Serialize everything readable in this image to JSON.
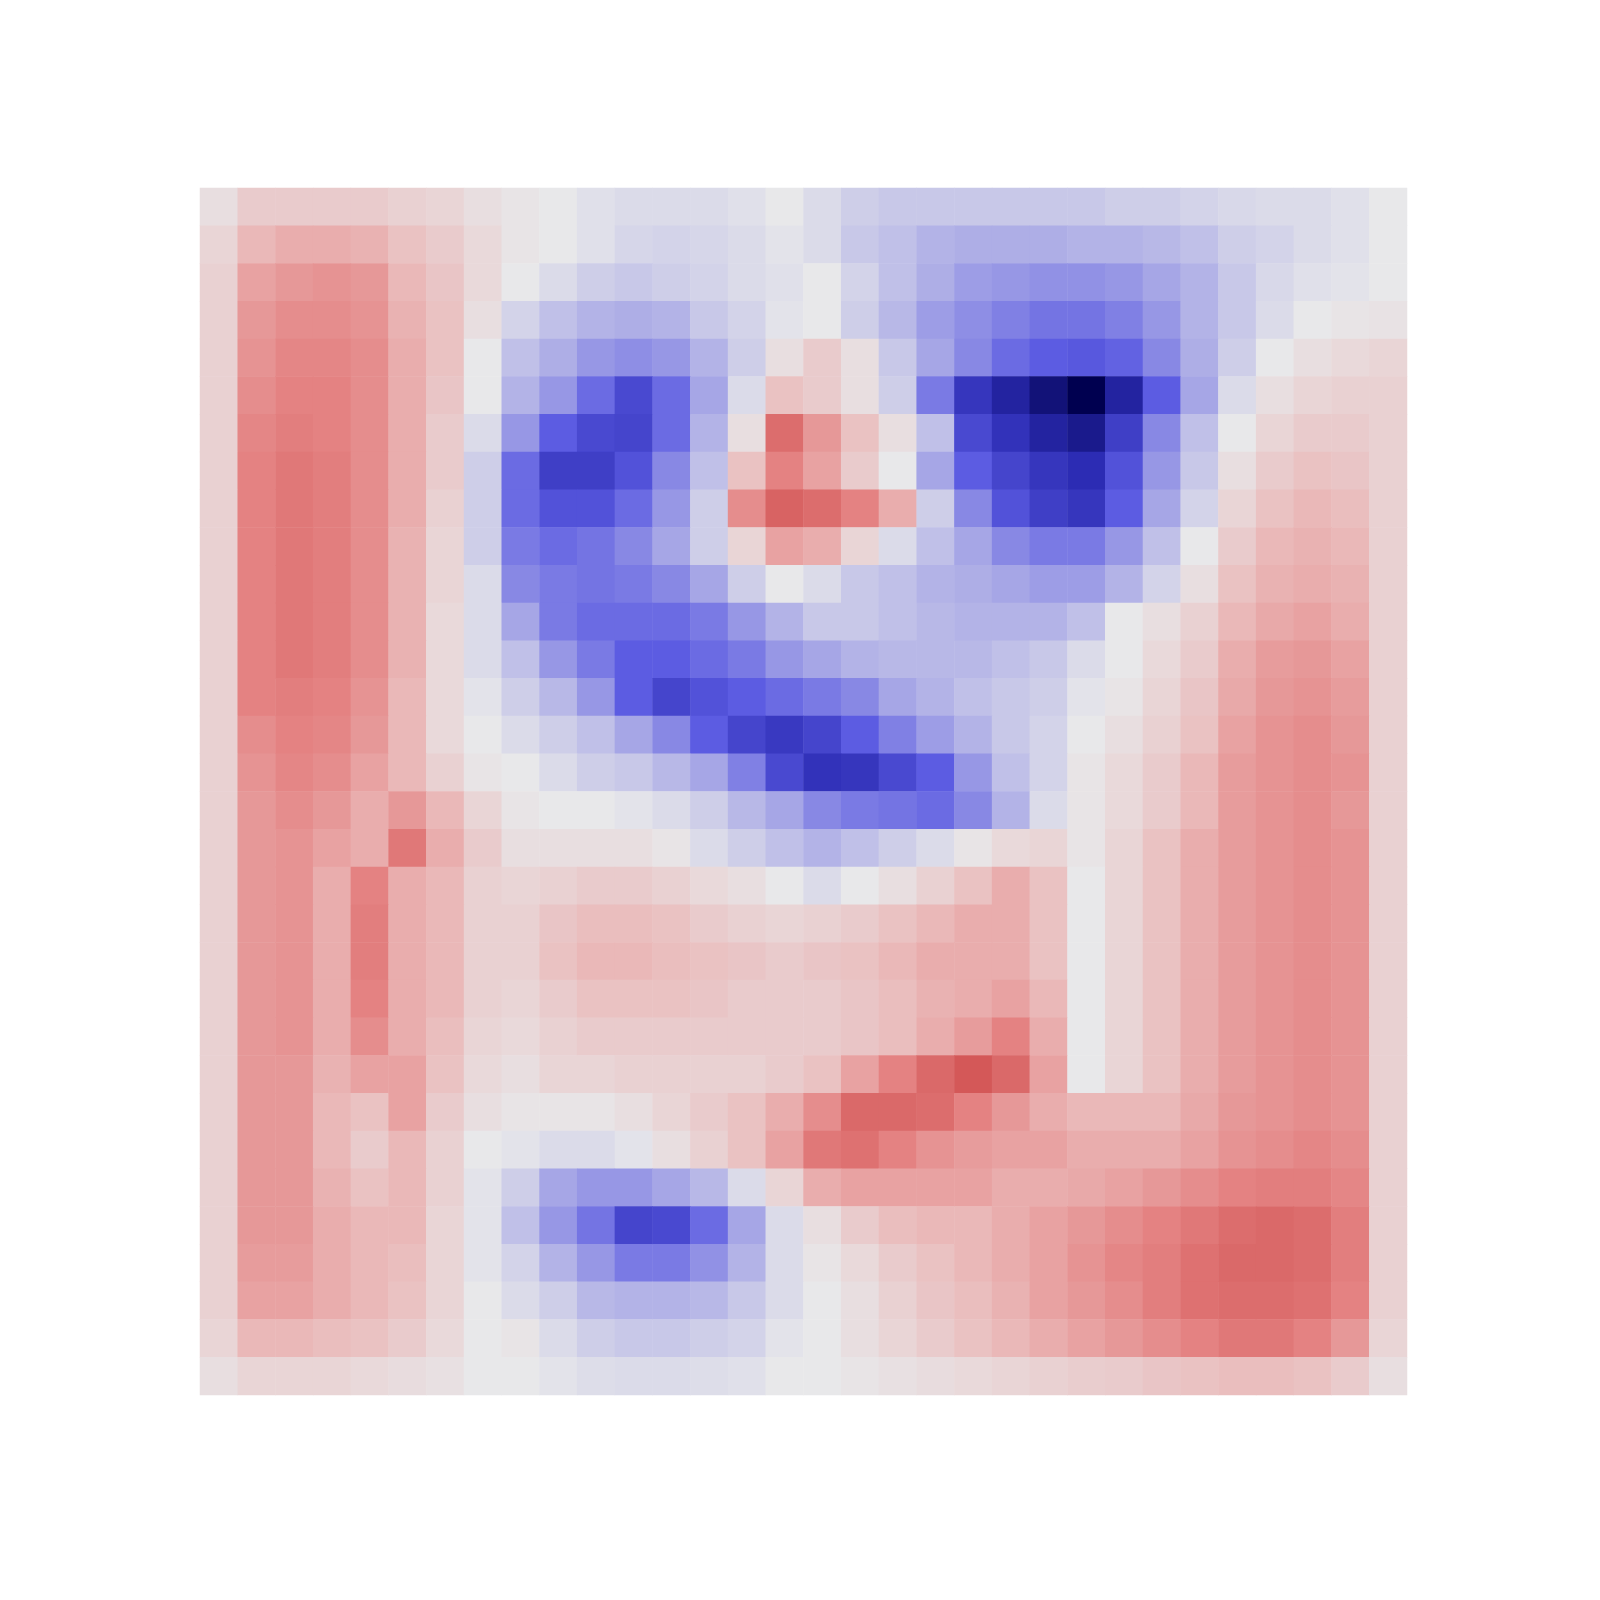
{
  "chart_data": {
    "type": "heatmap",
    "zlim": [
      -1,
      1
    ],
    "tick_labels": false,
    "cells": [
      [
        0.05,
        0.15,
        0.15,
        0.15,
        0.15,
        0.12,
        0.1,
        0.05,
        0.02,
        0,
        -0.03,
        -0.05,
        -0.05,
        -0.05,
        -0.03,
        0,
        -0.05,
        -0.1,
        -0.12,
        -0.12,
        -0.12,
        -0.12,
        -0.12,
        -0.12,
        -0.1,
        -0.1,
        -0.08,
        -0.06,
        -0.05,
        -0.05,
        -0.03,
        0
      ],
      [
        0.1,
        0.25,
        0.3,
        0.3,
        0.28,
        0.2,
        0.15,
        0.08,
        0.02,
        0,
        -0.03,
        -0.07,
        -0.08,
        -0.07,
        -0.05,
        -0.02,
        -0.05,
        -0.12,
        -0.15,
        -0.2,
        -0.22,
        -0.22,
        -0.22,
        -0.2,
        -0.2,
        -0.18,
        -0.15,
        -0.1,
        -0.08,
        -0.05,
        -0.03,
        0
      ],
      [
        0.12,
        0.35,
        0.4,
        0.42,
        0.4,
        0.25,
        0.18,
        0.08,
        0,
        -0.05,
        -0.1,
        -0.12,
        -0.1,
        -0.08,
        -0.05,
        -0.03,
        0,
        -0.08,
        -0.15,
        -0.22,
        -0.28,
        -0.3,
        -0.32,
        -0.32,
        -0.3,
        -0.25,
        -0.2,
        -0.12,
        -0.06,
        -0.03,
        -0.02,
        0
      ],
      [
        0.12,
        0.4,
        0.45,
        0.45,
        0.42,
        0.28,
        0.2,
        0.05,
        -0.08,
        -0.15,
        -0.2,
        -0.22,
        -0.2,
        -0.12,
        -0.08,
        -0.02,
        0,
        -0.1,
        -0.18,
        -0.28,
        -0.33,
        -0.38,
        -0.42,
        -0.42,
        -0.38,
        -0.3,
        -0.2,
        -0.12,
        -0.05,
        0,
        0.02,
        0.03
      ],
      [
        0.12,
        0.42,
        0.48,
        0.48,
        0.45,
        0.3,
        0.2,
        0,
        -0.15,
        -0.22,
        -0.3,
        -0.33,
        -0.3,
        -0.2,
        -0.1,
        0.05,
        0.15,
        0.05,
        -0.12,
        -0.25,
        -0.35,
        -0.45,
        -0.5,
        -0.52,
        -0.48,
        -0.35,
        -0.22,
        -0.1,
        0,
        0.05,
        0.08,
        0.1
      ],
      [
        0.12,
        0.45,
        0.5,
        0.5,
        0.45,
        0.3,
        0.18,
        0,
        -0.2,
        -0.3,
        -0.45,
        -0.6,
        -0.45,
        -0.25,
        -0.05,
        0.2,
        0.15,
        0.05,
        -0.1,
        -0.4,
        -0.7,
        -0.8,
        -0.9,
        -1.0,
        -0.8,
        -0.5,
        -0.25,
        -0.05,
        0.05,
        0.1,
        0.12,
        0.12
      ],
      [
        0.12,
        0.48,
        0.52,
        0.5,
        0.45,
        0.3,
        0.15,
        -0.05,
        -0.3,
        -0.5,
        -0.6,
        -0.62,
        -0.45,
        -0.2,
        0.05,
        0.6,
        0.4,
        0.2,
        0.05,
        -0.15,
        -0.6,
        -0.72,
        -0.8,
        -0.85,
        -0.65,
        -0.35,
        -0.15,
        0,
        0.1,
        0.15,
        0.15,
        0.12
      ],
      [
        0.12,
        0.5,
        0.55,
        0.52,
        0.45,
        0.3,
        0.15,
        -0.1,
        -0.45,
        -0.65,
        -0.65,
        -0.55,
        -0.35,
        -0.15,
        0.2,
        0.5,
        0.35,
        0.15,
        0,
        -0.25,
        -0.5,
        -0.62,
        -0.7,
        -0.75,
        -0.55,
        -0.3,
        -0.12,
        0.05,
        0.15,
        0.2,
        0.18,
        0.12
      ],
      [
        0.12,
        0.5,
        0.55,
        0.52,
        0.45,
        0.3,
        0.12,
        -0.1,
        -0.45,
        -0.55,
        -0.55,
        -0.45,
        -0.3,
        -0.1,
        0.45,
        0.65,
        0.6,
        0.5,
        0.3,
        -0.1,
        -0.35,
        -0.55,
        -0.65,
        -0.7,
        -0.5,
        -0.25,
        -0.08,
        0.1,
        0.2,
        0.25,
        0.22,
        0.12
      ],
      [
        0.12,
        0.5,
        0.55,
        0.52,
        0.45,
        0.28,
        0.1,
        -0.1,
        -0.4,
        -0.45,
        -0.42,
        -0.35,
        -0.25,
        -0.1,
        0.1,
        0.35,
        0.3,
        0.1,
        -0.05,
        -0.15,
        -0.25,
        -0.35,
        -0.4,
        -0.4,
        -0.3,
        -0.15,
        0,
        0.15,
        0.25,
        0.28,
        0.25,
        0.12
      ],
      [
        0.12,
        0.5,
        0.55,
        0.52,
        0.45,
        0.28,
        0.1,
        -0.05,
        -0.35,
        -0.4,
        -0.42,
        -0.4,
        -0.35,
        -0.25,
        -0.1,
        0,
        -0.05,
        -0.12,
        -0.15,
        -0.2,
        -0.22,
        -0.25,
        -0.28,
        -0.28,
        -0.2,
        -0.08,
        0.05,
        0.2,
        0.28,
        0.3,
        0.28,
        0.12
      ],
      [
        0.12,
        0.5,
        0.55,
        0.52,
        0.45,
        0.28,
        0.08,
        -0.05,
        -0.25,
        -0.4,
        -0.45,
        -0.45,
        -0.45,
        -0.4,
        -0.3,
        -0.2,
        -0.12,
        -0.12,
        -0.15,
        -0.18,
        -0.2,
        -0.2,
        -0.2,
        -0.15,
        0,
        0.05,
        0.12,
        0.25,
        0.32,
        0.35,
        0.3,
        0.12
      ],
      [
        0.12,
        0.5,
        0.55,
        0.52,
        0.45,
        0.28,
        0.08,
        -0.05,
        -0.15,
        -0.3,
        -0.4,
        -0.5,
        -0.5,
        -0.45,
        -0.4,
        -0.3,
        -0.25,
        -0.2,
        -0.18,
        -0.18,
        -0.18,
        -0.15,
        -0.12,
        -0.05,
        0,
        0.08,
        0.15,
        0.3,
        0.38,
        0.4,
        0.35,
        0.12
      ],
      [
        0.12,
        0.5,
        0.52,
        0.5,
        0.42,
        0.25,
        0.08,
        -0.02,
        -0.1,
        -0.18,
        -0.3,
        -0.5,
        -0.62,
        -0.55,
        -0.5,
        -0.45,
        -0.4,
        -0.35,
        -0.25,
        -0.2,
        -0.15,
        -0.12,
        -0.1,
        -0.02,
        0.02,
        0.1,
        0.18,
        0.32,
        0.4,
        0.42,
        0.38,
        0.12
      ],
      [
        0.12,
        0.45,
        0.5,
        0.48,
        0.4,
        0.25,
        0.08,
        0,
        -0.05,
        -0.1,
        -0.15,
        -0.25,
        -0.35,
        -0.5,
        -0.62,
        -0.68,
        -0.62,
        -0.5,
        -0.38,
        -0.28,
        -0.2,
        -0.12,
        -0.08,
        0,
        0.05,
        0.12,
        0.2,
        0.35,
        0.42,
        0.45,
        0.4,
        0.12
      ],
      [
        0.12,
        0.42,
        0.48,
        0.45,
        0.35,
        0.25,
        0.12,
        0.02,
        0,
        -0.05,
        -0.1,
        -0.12,
        -0.18,
        -0.25,
        -0.38,
        -0.6,
        -0.72,
        -0.7,
        -0.6,
        -0.5,
        -0.3,
        -0.15,
        -0.08,
        0.02,
        0.08,
        0.15,
        0.25,
        0.38,
        0.42,
        0.45,
        0.42,
        0.12
      ],
      [
        0.12,
        0.4,
        0.45,
        0.4,
        0.3,
        0.4,
        0.25,
        0.1,
        0.02,
        0,
        0,
        -0.02,
        -0.05,
        -0.1,
        -0.18,
        -0.25,
        -0.35,
        -0.4,
        -0.42,
        -0.45,
        -0.35,
        -0.2,
        -0.05,
        0.02,
        0.08,
        0.15,
        0.25,
        0.38,
        0.42,
        0.45,
        0.4,
        0.12
      ],
      [
        0.12,
        0.4,
        0.42,
        0.35,
        0.3,
        0.55,
        0.3,
        0.15,
        0.05,
        0.05,
        0.05,
        0.05,
        0.02,
        -0.05,
        -0.1,
        -0.15,
        -0.2,
        -0.15,
        -0.1,
        -0.05,
        0.02,
        0.08,
        0.1,
        0.02,
        0.1,
        0.2,
        0.3,
        0.38,
        0.42,
        0.45,
        0.42,
        0.12
      ],
      [
        0.12,
        0.4,
        0.42,
        0.3,
        0.5,
        0.3,
        0.25,
        0.12,
        0.1,
        0.12,
        0.15,
        0.15,
        0.12,
        0.08,
        0.05,
        0,
        -0.05,
        0,
        0.05,
        0.12,
        0.2,
        0.3,
        0.2,
        0,
        0.1,
        0.2,
        0.3,
        0.38,
        0.42,
        0.45,
        0.42,
        0.12
      ],
      [
        0.12,
        0.4,
        0.42,
        0.3,
        0.52,
        0.3,
        0.25,
        0.12,
        0.12,
        0.18,
        0.22,
        0.22,
        0.2,
        0.15,
        0.12,
        0.1,
        0.12,
        0.15,
        0.2,
        0.25,
        0.3,
        0.3,
        0.2,
        0,
        0.1,
        0.2,
        0.3,
        0.38,
        0.42,
        0.45,
        0.42,
        0.12
      ],
      [
        0.12,
        0.4,
        0.42,
        0.3,
        0.52,
        0.3,
        0.25,
        0.12,
        0.12,
        0.2,
        0.25,
        0.25,
        0.22,
        0.2,
        0.18,
        0.15,
        0.18,
        0.2,
        0.25,
        0.3,
        0.3,
        0.3,
        0.2,
        0,
        0.1,
        0.2,
        0.3,
        0.38,
        0.42,
        0.45,
        0.42,
        0.12
      ],
      [
        0.12,
        0.4,
        0.42,
        0.3,
        0.5,
        0.3,
        0.25,
        0.12,
        0.1,
        0.15,
        0.2,
        0.2,
        0.2,
        0.18,
        0.15,
        0.15,
        0.15,
        0.18,
        0.22,
        0.28,
        0.3,
        0.35,
        0.25,
        0,
        0.1,
        0.2,
        0.3,
        0.38,
        0.42,
        0.45,
        0.42,
        0.12
      ],
      [
        0.12,
        0.4,
        0.42,
        0.3,
        0.45,
        0.3,
        0.22,
        0.1,
        0.08,
        0.12,
        0.15,
        0.15,
        0.15,
        0.15,
        0.15,
        0.15,
        0.15,
        0.18,
        0.22,
        0.3,
        0.38,
        0.5,
        0.3,
        0,
        0.1,
        0.2,
        0.3,
        0.38,
        0.42,
        0.45,
        0.42,
        0.12
      ],
      [
        0.12,
        0.4,
        0.4,
        0.28,
        0.35,
        0.35,
        0.2,
        0.08,
        0.05,
        0.1,
        0.1,
        0.12,
        0.12,
        0.12,
        0.12,
        0.15,
        0.2,
        0.35,
        0.5,
        0.62,
        0.7,
        0.62,
        0.35,
        0,
        0.1,
        0.2,
        0.3,
        0.38,
        0.42,
        0.45,
        0.42,
        0.12
      ],
      [
        0.12,
        0.4,
        0.4,
        0.25,
        0.2,
        0.35,
        0.15,
        0.05,
        0.02,
        0.02,
        0.02,
        0.05,
        0.1,
        0.15,
        0.2,
        0.3,
        0.45,
        0.62,
        0.62,
        0.6,
        0.5,
        0.4,
        0.3,
        0.25,
        0.25,
        0.25,
        0.32,
        0.4,
        0.42,
        0.45,
        0.42,
        0.12
      ],
      [
        0.12,
        0.4,
        0.4,
        0.25,
        0.15,
        0.25,
        0.12,
        0,
        -0.02,
        -0.05,
        -0.05,
        -0.02,
        0.05,
        0.12,
        0.2,
        0.35,
        0.55,
        0.58,
        0.5,
        0.42,
        0.38,
        0.35,
        0.35,
        0.3,
        0.3,
        0.3,
        0.35,
        0.42,
        0.45,
        0.48,
        0.45,
        0.12
      ],
      [
        0.12,
        0.4,
        0.4,
        0.28,
        0.2,
        0.25,
        0.12,
        -0.02,
        -0.1,
        -0.25,
        -0.3,
        -0.3,
        -0.25,
        -0.18,
        -0.05,
        0.1,
        0.3,
        0.35,
        0.35,
        0.35,
        0.35,
        0.3,
        0.3,
        0.32,
        0.35,
        0.4,
        0.45,
        0.5,
        0.52,
        0.52,
        0.48,
        0.12
      ],
      [
        0.12,
        0.4,
        0.4,
        0.3,
        0.25,
        0.25,
        0.1,
        -0.02,
        -0.15,
        -0.3,
        -0.42,
        -0.62,
        -0.6,
        -0.45,
        -0.25,
        -0.05,
        0.05,
        0.15,
        0.22,
        0.25,
        0.25,
        0.3,
        0.35,
        0.4,
        0.45,
        0.5,
        0.55,
        0.6,
        0.62,
        0.6,
        0.52,
        0.12
      ],
      [
        0.12,
        0.38,
        0.38,
        0.3,
        0.25,
        0.22,
        0.1,
        -0.02,
        -0.08,
        -0.2,
        -0.3,
        -0.4,
        -0.4,
        -0.32,
        -0.2,
        -0.05,
        0.02,
        0.08,
        0.15,
        0.2,
        0.25,
        0.3,
        0.35,
        0.42,
        0.48,
        0.52,
        0.58,
        0.62,
        0.62,
        0.6,
        0.52,
        0.12
      ],
      [
        0.12,
        0.35,
        0.35,
        0.3,
        0.25,
        0.2,
        0.1,
        0,
        -0.05,
        -0.1,
        -0.18,
        -0.2,
        -0.2,
        -0.18,
        -0.12,
        -0.05,
        0,
        0.05,
        0.12,
        0.18,
        0.22,
        0.28,
        0.35,
        0.4,
        0.45,
        0.52,
        0.58,
        0.6,
        0.6,
        0.58,
        0.5,
        0.12
      ],
      [
        0.1,
        0.25,
        0.25,
        0.22,
        0.2,
        0.15,
        0.08,
        0,
        0.02,
        -0.05,
        -0.1,
        -0.12,
        -0.12,
        -0.1,
        -0.08,
        -0.02,
        0,
        0.05,
        0.1,
        0.15,
        0.2,
        0.25,
        0.3,
        0.35,
        0.4,
        0.45,
        0.5,
        0.55,
        0.55,
        0.5,
        0.4,
        0.1
      ],
      [
        0.05,
        0.1,
        0.1,
        0.1,
        0.08,
        0.06,
        0.04,
        0,
        0,
        -0.02,
        -0.04,
        -0.05,
        -0.05,
        -0.04,
        -0.03,
        0,
        0,
        0.02,
        0.04,
        0.06,
        0.08,
        0.1,
        0.12,
        0.14,
        0.15,
        0.18,
        0.2,
        0.22,
        0.22,
        0.2,
        0.15,
        0.05
      ]
    ]
  }
}
